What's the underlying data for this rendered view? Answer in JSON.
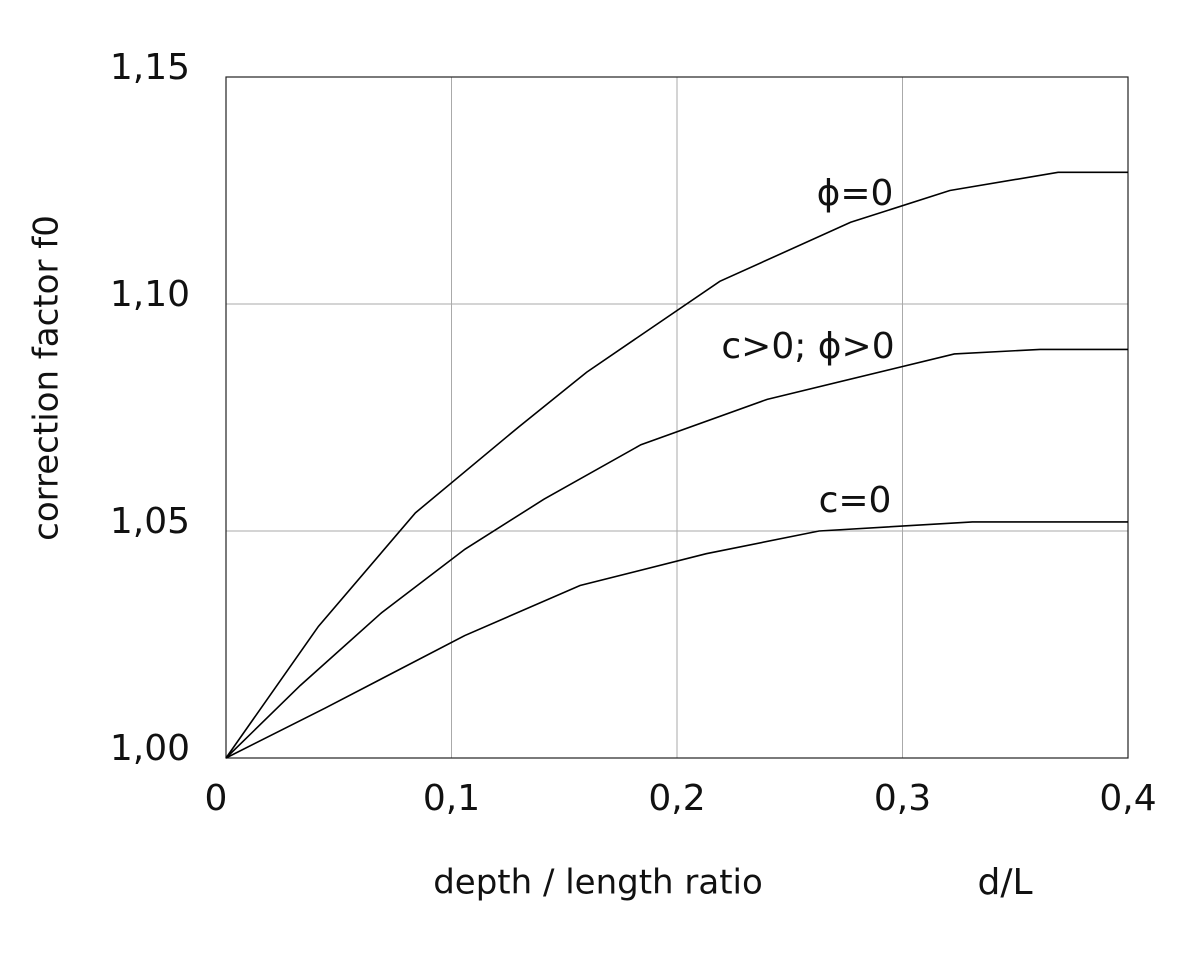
{
  "chart_data": {
    "type": "line",
    "ylabel": "correction factor  f0",
    "xlabel": "depth / length ratio",
    "xlabel_symbol": "d/L",
    "xlim": [
      0,
      0.4
    ],
    "xticks": [
      0,
      {
        "value": 0.1,
        "label": "0,1"
      },
      {
        "value": 0.2,
        "label": "0,2"
      },
      {
        "value": 0.3,
        "label": "0,3"
      },
      {
        "value": 0.4,
        "label": "0,4"
      }
    ],
    "ylim": [
      1.0,
      1.15
    ],
    "yticks": [
      {
        "value": 1.0,
        "label": "1,00"
      },
      {
        "value": 1.05,
        "label": "1,05"
      },
      {
        "value": 1.1,
        "label": "1,10"
      },
      {
        "value": 1.15,
        "label": "1,15"
      }
    ],
    "grid": true,
    "series": [
      {
        "name": "ϕ=0",
        "color": "#000000",
        "x": [
          0,
          0.041,
          0.084,
          0.13,
          0.16,
          0.219,
          0.277,
          0.321,
          0.369,
          0.4
        ],
        "values": [
          1.0,
          1.029,
          1.054,
          1.073,
          1.085,
          1.105,
          1.118,
          1.125,
          1.129,
          1.129
        ]
      },
      {
        "name": "c>0; ϕ>0",
        "color": "#000000",
        "x": [
          0,
          0.033,
          0.069,
          0.106,
          0.141,
          0.184,
          0.24,
          0.323,
          0.361,
          0.4
        ],
        "values": [
          1.0,
          1.016,
          1.032,
          1.046,
          1.057,
          1.069,
          1.079,
          1.089,
          1.09,
          1.09
        ]
      },
      {
        "name": "c=0",
        "color": "#000000",
        "x": [
          0,
          0.044,
          0.106,
          0.157,
          0.213,
          0.263,
          0.331,
          0.4
        ],
        "values": [
          1.0,
          1.011,
          1.027,
          1.038,
          1.045,
          1.05,
          1.052,
          1.052
        ]
      }
    ]
  }
}
